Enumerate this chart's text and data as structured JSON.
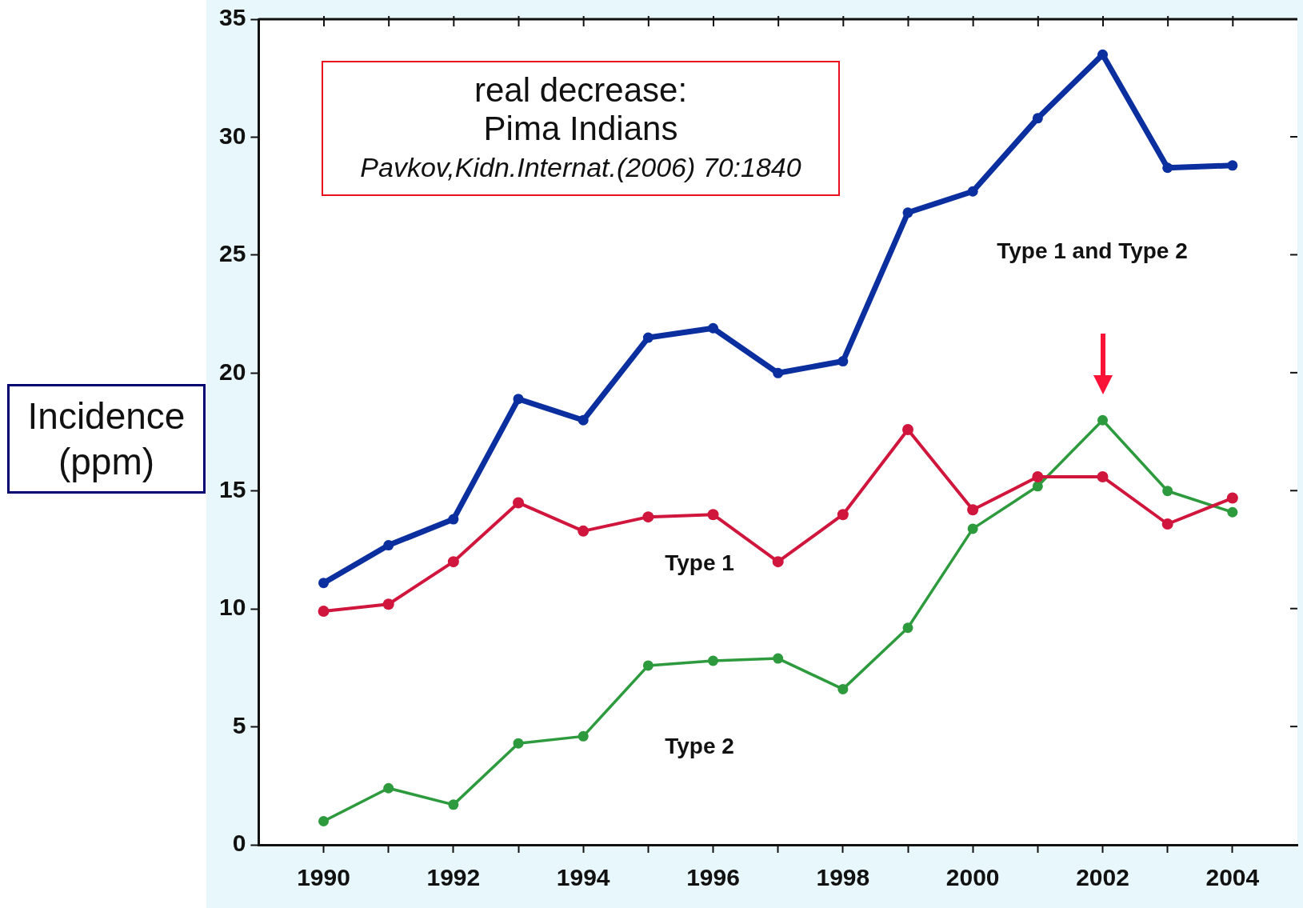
{
  "chart_data": {
    "type": "line",
    "ylabel": "Incidence (ppm)",
    "annotations": [
      "real decrease:",
      "Pima Indians",
      "Pavkov,Kidn.Internat.(2006) 70:1840"
    ],
    "x": [
      1990,
      1991,
      1992,
      1993,
      1994,
      1995,
      1996,
      1997,
      1998,
      1999,
      2000,
      2001,
      2002,
      2003,
      2004
    ],
    "xlim": [
      1989,
      2005
    ],
    "xticks": [
      1990,
      {
        "value": 1991,
        "label": null
      },
      1992,
      {
        "value": 1993,
        "label": null
      },
      1994,
      {
        "value": 1995,
        "label": null
      },
      1996,
      {
        "value": 1997,
        "label": null
      },
      1998,
      {
        "value": 1999,
        "label": null
      },
      2000,
      {
        "value": 2001,
        "label": null
      },
      2002,
      {
        "value": 2003,
        "label": null
      },
      2004
    ],
    "ylim": [
      0,
      35
    ],
    "yticks": [
      0,
      5,
      10,
      15,
      20,
      25,
      30,
      35
    ],
    "grid": false,
    "marker": "circle",
    "line_style": "solid",
    "series": [
      {
        "name": "Type 1 and Type 2",
        "color": "#0b2f9f",
        "values": [
          11.1,
          12.7,
          13.8,
          18.9,
          18.0,
          21.5,
          21.9,
          20.0,
          20.5,
          26.8,
          27.7,
          30.8,
          33.5,
          28.7,
          28.8
        ]
      },
      {
        "name": "Type 1",
        "color": "#d0163c",
        "values": [
          9.9,
          10.2,
          12.0,
          14.5,
          13.3,
          13.9,
          14.0,
          12.0,
          14.0,
          17.6,
          14.2,
          15.6,
          15.6,
          13.6,
          14.7
        ]
      },
      {
        "name": "Type 2",
        "color": "#2e9a3e",
        "values": [
          1.0,
          2.4,
          1.7,
          4.3,
          4.6,
          7.6,
          7.8,
          7.9,
          6.6,
          9.2,
          13.4,
          15.2,
          18.0,
          15.0,
          14.1
        ]
      }
    ]
  }
}
